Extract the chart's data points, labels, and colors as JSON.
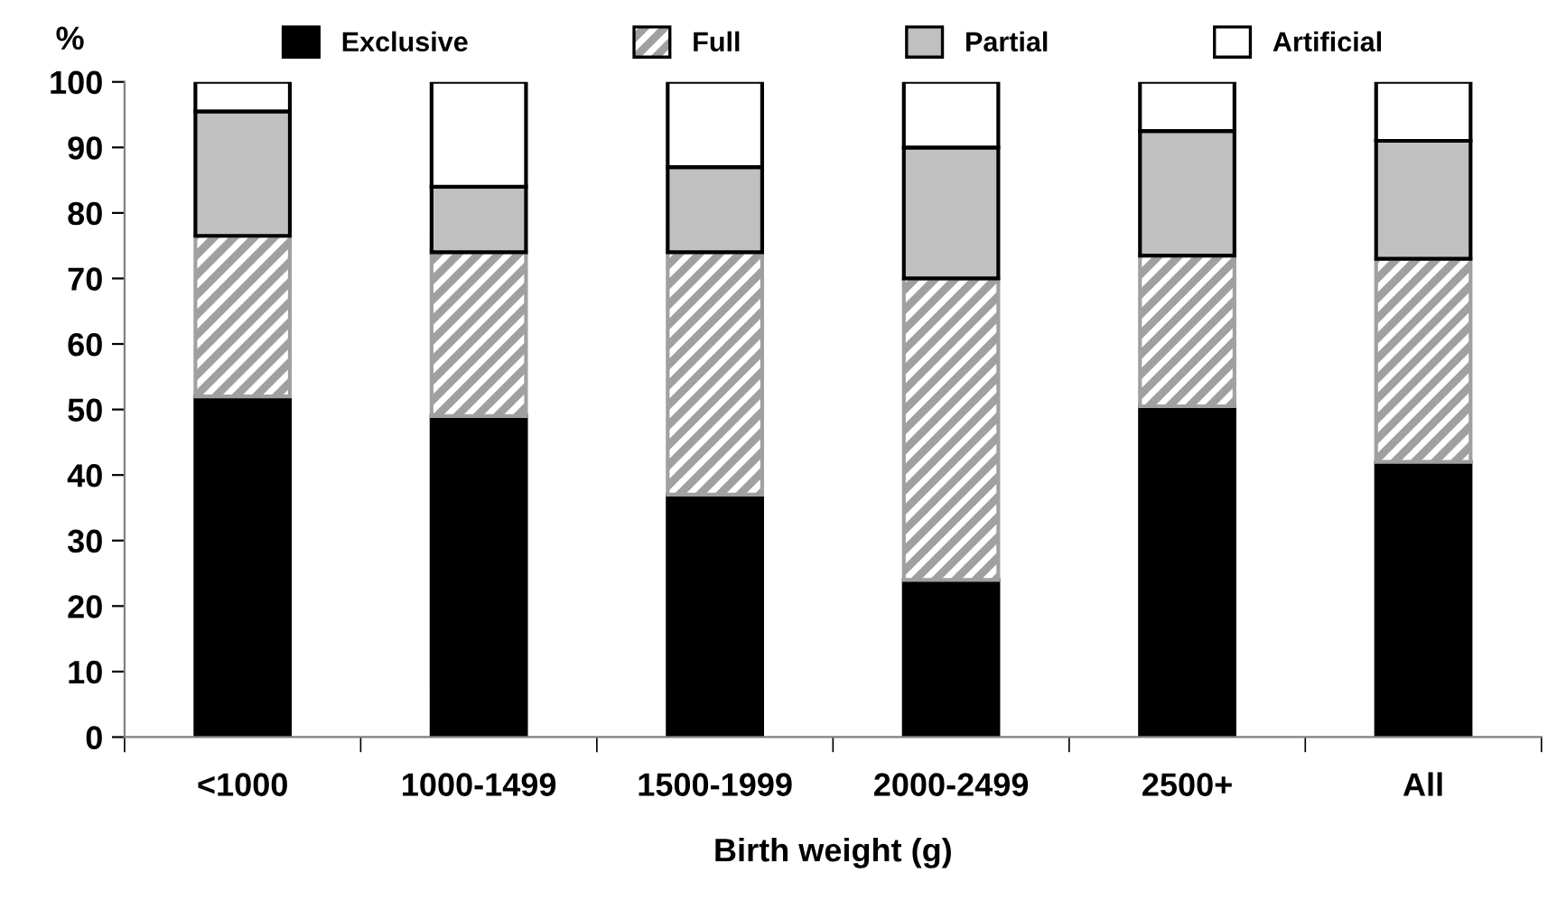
{
  "chart_data": {
    "type": "bar",
    "stacked": true,
    "ylabel": "%",
    "xlabel": "Birth weight (g)",
    "categories": [
      "<1000",
      "1000-1499",
      "1500-1999",
      "2000-2499",
      "2500+",
      "All"
    ],
    "series": [
      {
        "name": "Exclusive",
        "color": "#000000",
        "values": [
          52,
          49,
          37,
          24,
          50.5,
          42
        ]
      },
      {
        "name": "Full",
        "color": "#a0a0a0",
        "values": [
          24.5,
          25,
          37,
          46,
          23,
          31
        ]
      },
      {
        "name": "Partial",
        "color": "#c0c0c0",
        "values": [
          19,
          10,
          13,
          20,
          19,
          18
        ]
      },
      {
        "name": "Artificial",
        "color": "#ffffff",
        "values": [
          4.5,
          16,
          13,
          10,
          7.5,
          9
        ]
      }
    ],
    "ylim": [
      0,
      100
    ],
    "yticks": [
      0,
      10,
      20,
      30,
      40,
      50,
      60,
      70,
      80,
      90,
      100
    ],
    "grid": false,
    "legend": "top"
  }
}
